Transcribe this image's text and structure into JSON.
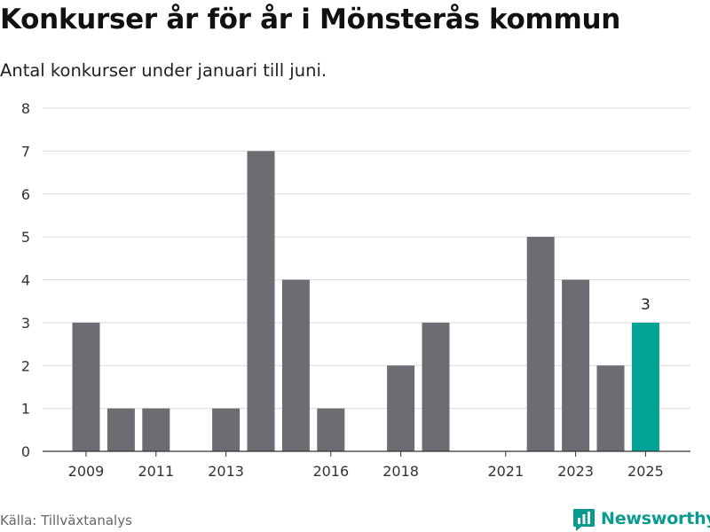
{
  "header": {
    "title": "Konkurser år för år i Mönsterås kommun",
    "subtitle": "Antal konkurser under januari till juni."
  },
  "footer": {
    "source": "Källa: Tillväxtanalys",
    "brand_name": "Newsworthy"
  },
  "colors": {
    "bar": "#6d6c73",
    "highlight": "#00a396",
    "grid": "#dcdcdc",
    "axis": "#333333",
    "brand": "#0a9a8f"
  },
  "chart_data": {
    "type": "bar",
    "categories": [
      "2009",
      "2010",
      "2011",
      "2012",
      "2013",
      "2014",
      "2015",
      "2016",
      "2017",
      "2018",
      "2019",
      "2020",
      "2021",
      "2022",
      "2023",
      "2024",
      "2025"
    ],
    "values": [
      3,
      1,
      1,
      0,
      1,
      7,
      4,
      1,
      0,
      2,
      3,
      0,
      0,
      5,
      4,
      2,
      3
    ],
    "tick_labels": [
      "2009",
      "2011",
      "2013",
      "2016",
      "2018",
      "2021",
      "2023",
      "2025"
    ],
    "highlight_category": "2025",
    "data_labels": [
      {
        "category": "2025",
        "text": "3"
      }
    ],
    "ylim": [
      0,
      8
    ],
    "yticks": [
      0,
      1,
      2,
      3,
      4,
      5,
      6,
      7,
      8
    ],
    "xlabel": "",
    "ylabel": "",
    "grid": true
  }
}
